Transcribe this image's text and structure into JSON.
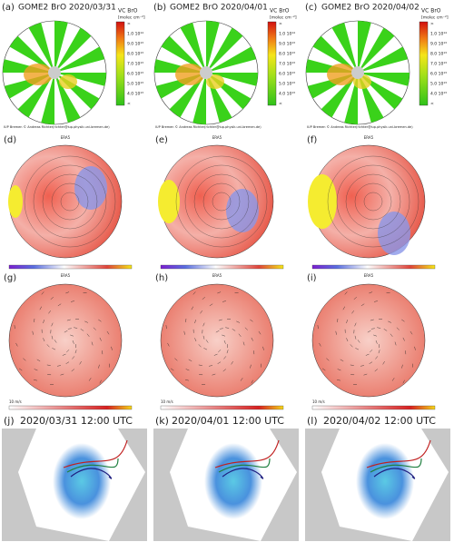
{
  "gome": [
    {
      "label": "(a)",
      "title": "GOME2 BrO 2020/03/31"
    },
    {
      "label": "(b)",
      "title": "GOME2 BrO 2020/04/01"
    },
    {
      "label": "(c)",
      "title": "GOME2 BrO 2020/04/02"
    }
  ],
  "gome_colorbar": {
    "title": "VC BrO",
    "unit": "[molec cm⁻²]",
    "ticks": [
      ">",
      "1.0 10¹⁴",
      "9.0 10¹³",
      "8.0 10¹³",
      "7.0 10¹³",
      "6.0 10¹³",
      "5.0 10¹³",
      "4.0 10¹³",
      "<"
    ]
  },
  "credit": "IUP Bremen © Andreas Richter(richter@iup.physik.uni-bremen.de)",
  "geopotential": [
    {
      "label": "(d)"
    },
    {
      "label": "(e)"
    },
    {
      "label": "(f)"
    }
  ],
  "wind": [
    {
      "label": "(g)"
    },
    {
      "label": "(h)"
    },
    {
      "label": "(i)"
    }
  ],
  "era_source": "ERA5",
  "wind_scale": "10 m/s",
  "trajectories": [
    {
      "label": "(j)",
      "title": "2020/03/31 12:00 UTC"
    },
    {
      "label": "(k)",
      "title": "2020/04/01 12:00 UTC"
    },
    {
      "label": "(l)",
      "title": "2020/04/02 12:00 UTC"
    }
  ]
}
